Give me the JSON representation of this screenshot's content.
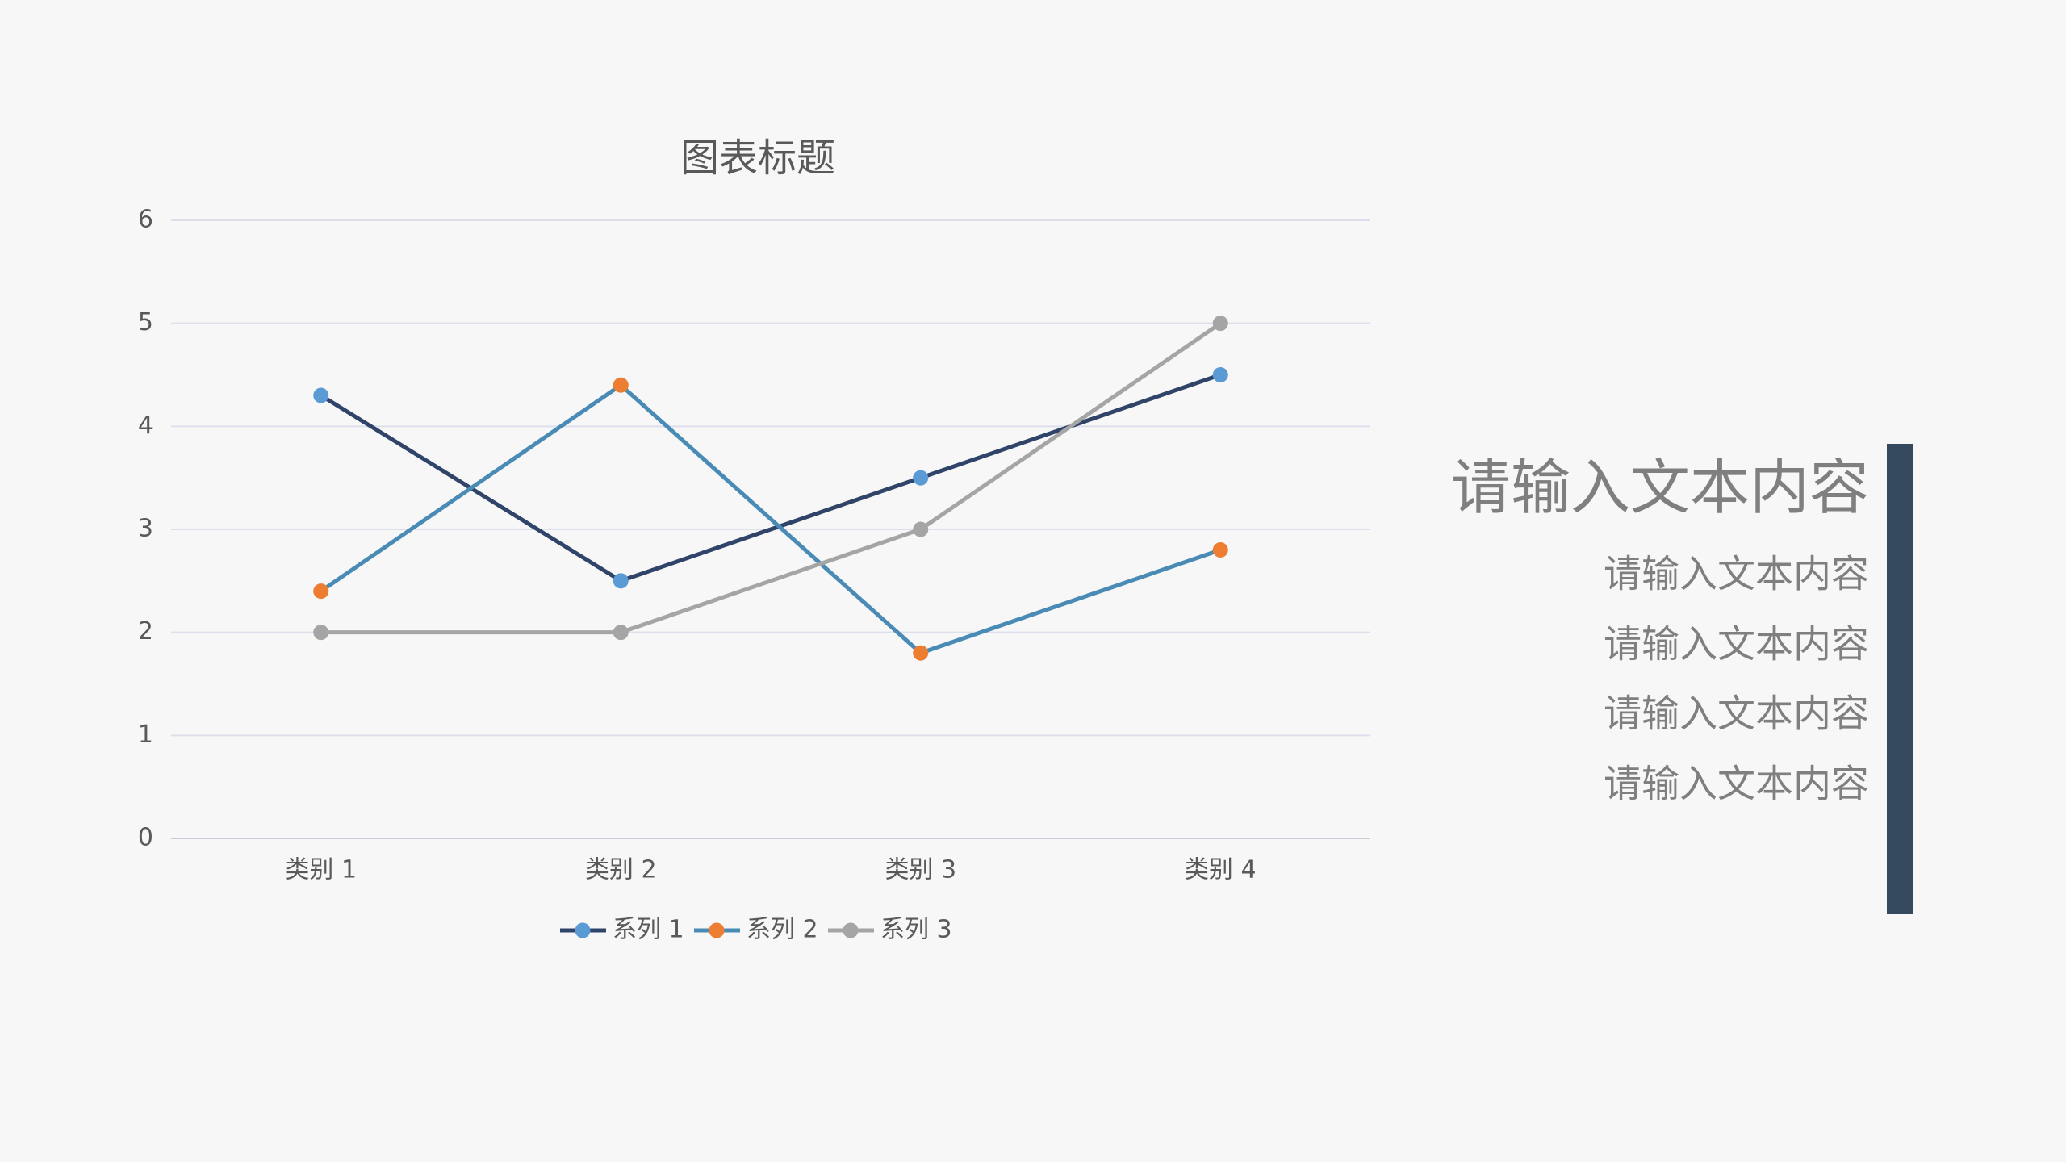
{
  "chart_data": {
    "type": "line",
    "title": "图表标题",
    "categories": [
      "类别 1",
      "类别 2",
      "类别 3",
      "类别 4"
    ],
    "series": [
      {
        "name": "系列 1",
        "color": "#2f4468",
        "marker_color": "#5b9bd5",
        "values": [
          4.3,
          2.5,
          3.5,
          4.5
        ]
      },
      {
        "name": "系列 2",
        "color": "#4a8bb5",
        "marker_color": "#ed7d31",
        "values": [
          2.4,
          4.4,
          1.8,
          2.8
        ]
      },
      {
        "name": "系列 3",
        "color": "#a5a5a5",
        "marker_color": "#a5a5a5",
        "values": [
          2,
          2,
          3,
          5
        ]
      }
    ],
    "ylim": [
      0,
      6
    ],
    "yticks": [
      0,
      1,
      2,
      3,
      4,
      5,
      6
    ],
    "grid": true,
    "legend": "bottom"
  },
  "side_text": {
    "heading": "请输入文本内容",
    "lines": [
      "请输入文本内容",
      "请输入文本内容",
      "请输入文本内容",
      "请输入文本内容"
    ]
  }
}
